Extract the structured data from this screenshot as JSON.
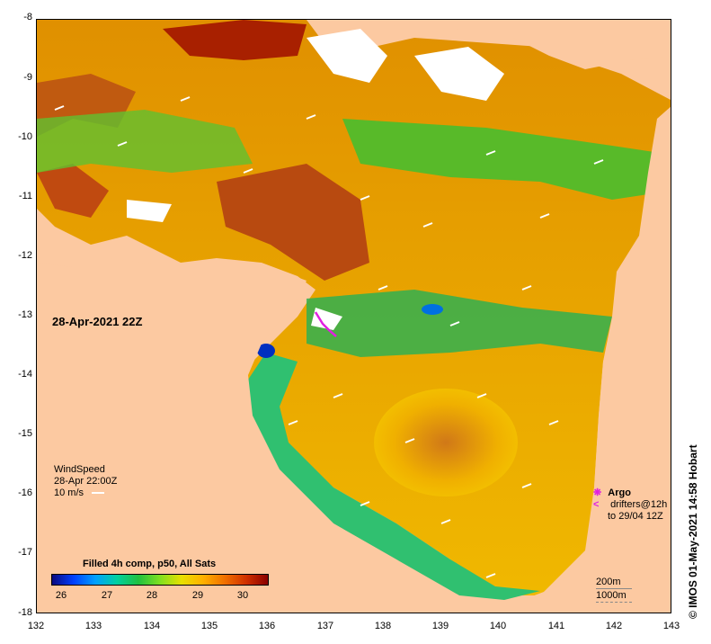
{
  "map": {
    "y_ticks": [
      "-8",
      "-9",
      "-10",
      "-11",
      "-12",
      "-13",
      "-14",
      "-15",
      "-16",
      "-17",
      "-18"
    ],
    "x_ticks": [
      "132",
      "133",
      "134",
      "135",
      "136",
      "137",
      "138",
      "139",
      "140",
      "141",
      "142",
      "143"
    ],
    "date_label": "28-Apr-2021 22Z",
    "wind": {
      "title": "WindSpeed",
      "time": "28-Apr 22:00Z",
      "scale_label": "10 m/s"
    },
    "legend": {
      "title": "Filled 4h comp, p50, All Sats",
      "ticks": [
        "26",
        "27",
        "28",
        "29",
        "30"
      ]
    },
    "argo": {
      "label": "Argo",
      "drifters_line1": "drifters@12h",
      "drifters_line2": "to 29/04 12Z"
    },
    "scale": {
      "line1": "200m",
      "line2": "1000m"
    },
    "credit": "© IMOS 01-May-2021 14:58 Hobart",
    "colors": {
      "land": "#fcc9a1",
      "argo": "#e020e0"
    }
  }
}
